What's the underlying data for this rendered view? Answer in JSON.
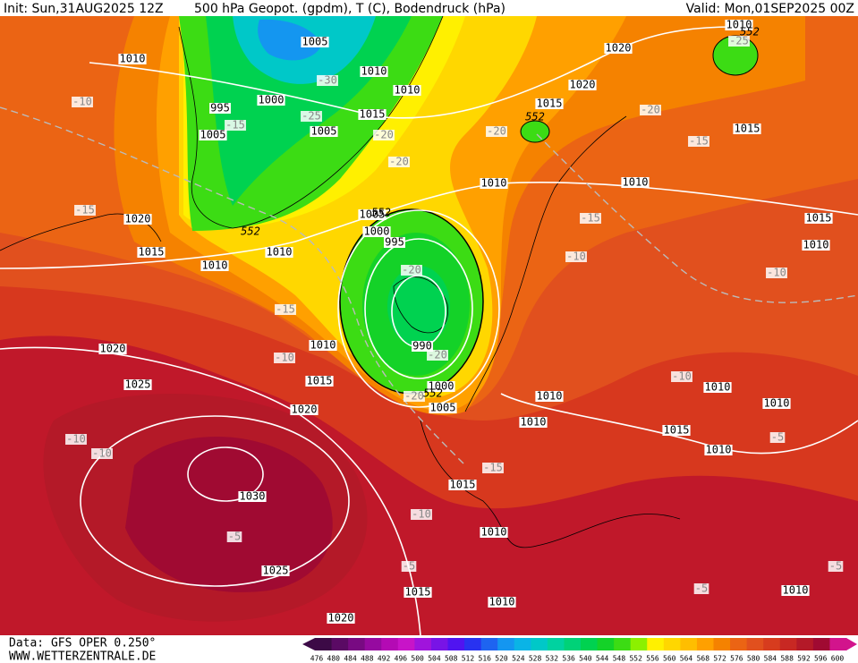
{
  "header": {
    "init": "Init: Sun,31AUG2025 12Z",
    "title": "500 hPa Geopot. (gpdm), T (C), Bodendruck (hPa)",
    "valid": "Valid: Mon,01SEP2025 00Z"
  },
  "footer": {
    "data": "Data: GFS OPER 0.250°",
    "site": "WWW.WETTERZENTRALE.DE"
  },
  "colorbar": {
    "labels": [
      476,
      480,
      484,
      488,
      492,
      496,
      500,
      504,
      508,
      512,
      516,
      520,
      524,
      528,
      532,
      536,
      540,
      544,
      548,
      552,
      556,
      560,
      564,
      568,
      572,
      576,
      580,
      584,
      588,
      592,
      596,
      600
    ],
    "colors": [
      "#3c0a46",
      "#5a0a64",
      "#780a82",
      "#960aa0",
      "#b40ab4",
      "#c814c8",
      "#a014dc",
      "#7814e6",
      "#5014f0",
      "#2832f0",
      "#1e64f0",
      "#1496f0",
      "#0ab4e6",
      "#00c8c8",
      "#00d2a0",
      "#00d278",
      "#00d250",
      "#14d228",
      "#3cdc14",
      "#8cf000",
      "#fff000",
      "#ffd700",
      "#ffbe00",
      "#ffa000",
      "#f58200",
      "#eb6414",
      "#e1501e",
      "#d73c1e",
      "#c82823",
      "#b41928",
      "#a00a32",
      "#d2148c"
    ]
  },
  "labels": {
    "pressure": [
      1010,
      1005,
      1010,
      1010,
      1000,
      995,
      1005,
      1005,
      1015,
      1010,
      1020,
      1015,
      1010,
      1010,
      1005,
      1000,
      995,
      1020,
      1010,
      1015,
      1025,
      1020,
      990,
      1000,
      1005,
      1010,
      1010,
      1015,
      1030,
      1025,
      1010,
      1015,
      1010,
      1020,
      1020,
      1020,
      1015,
      1010,
      1015,
      1010,
      1015,
      1010,
      1010,
      1015,
      1010,
      1010,
      1010
    ],
    "temperature": [
      -10,
      -15,
      -15,
      -10,
      -20,
      -20,
      -20,
      -25,
      -30,
      -25,
      -20,
      -20,
      -15,
      -15,
      -10,
      -10,
      -10,
      -10,
      -10,
      -15,
      -10,
      -5,
      -5,
      -5,
      -5,
      -5,
      -20,
      -20,
      -15
    ],
    "height": [
      552,
      552,
      552,
      552,
      552
    ]
  }
}
